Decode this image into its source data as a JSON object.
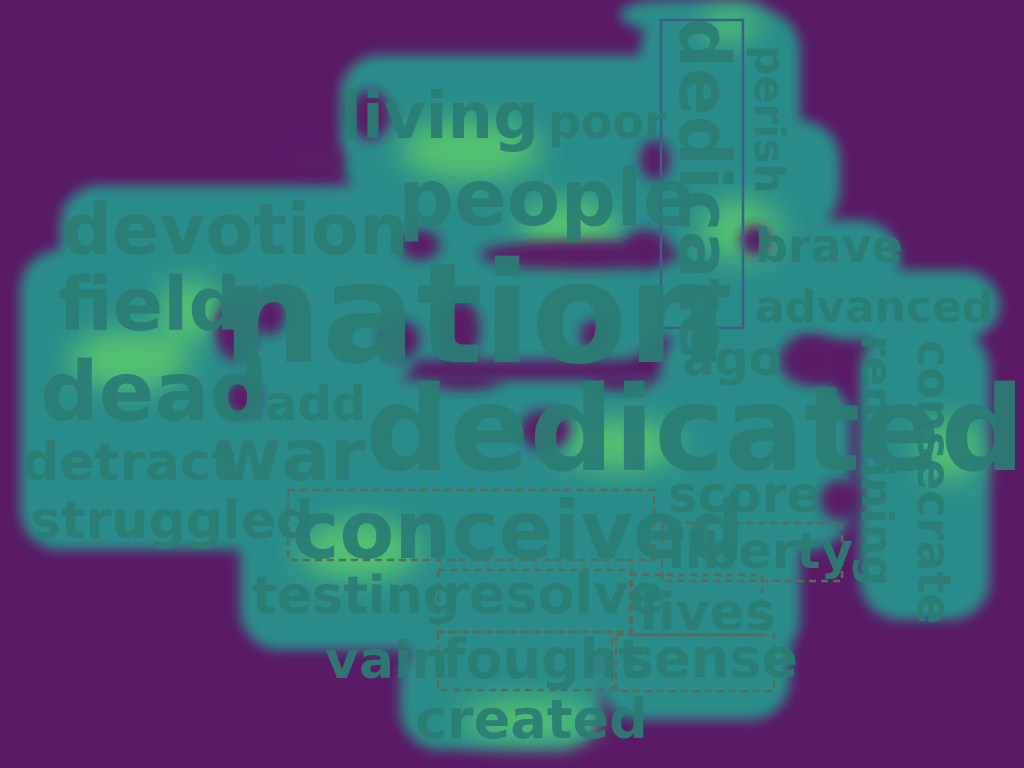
{
  "colors": {
    "background": "#5a1a66",
    "heat_low": "#2a8c8a",
    "heat_mid": "#2ea88a",
    "heat_high": "#5fd06a",
    "word": "#2a7d74",
    "box_dashed": "#5a6a5a",
    "box_solid": "#3a6088"
  },
  "words": [
    {
      "text": "dedicate",
      "key": "dedicate",
      "vertical": true,
      "highlight": "solid"
    },
    {
      "text": "perish",
      "key": "perish",
      "vertical": true,
      "highlight": "none"
    },
    {
      "text": "living",
      "key": "living",
      "vertical": false,
      "highlight": "none"
    },
    {
      "text": "poor",
      "key": "poor",
      "vertical": false,
      "highlight": "none"
    },
    {
      "text": "people",
      "key": "people",
      "vertical": false,
      "highlight": "none"
    },
    {
      "text": "devotion",
      "key": "devotion",
      "vertical": false,
      "highlight": "none"
    },
    {
      "text": "brave",
      "key": "brave",
      "vertical": false,
      "highlight": "none"
    },
    {
      "text": "field",
      "key": "field",
      "vertical": false,
      "highlight": "none"
    },
    {
      "text": "nation",
      "key": "nation",
      "vertical": false,
      "highlight": "none"
    },
    {
      "text": "advanced",
      "key": "advanced",
      "vertical": false,
      "highlight": "none"
    },
    {
      "text": "dead",
      "key": "dead",
      "vertical": false,
      "highlight": "none"
    },
    {
      "text": "add",
      "key": "add",
      "vertical": false,
      "highlight": "none"
    },
    {
      "text": "ago",
      "key": "ago",
      "vertical": false,
      "highlight": "none"
    },
    {
      "text": "remaining",
      "key": "remaining",
      "vertical": true,
      "highlight": "none"
    },
    {
      "text": "consecrate",
      "key": "consecrate",
      "vertical": true,
      "highlight": "none"
    },
    {
      "text": "dedicated",
      "key": "dedicated",
      "vertical": false,
      "highlight": "none"
    },
    {
      "text": "detract",
      "key": "detract",
      "vertical": false,
      "highlight": "none"
    },
    {
      "text": "war",
      "key": "war",
      "vertical": false,
      "highlight": "none"
    },
    {
      "text": "score",
      "key": "score",
      "vertical": false,
      "highlight": "none"
    },
    {
      "text": "struggled",
      "key": "struggled",
      "vertical": false,
      "highlight": "none"
    },
    {
      "text": "conceived",
      "key": "conceived",
      "vertical": false,
      "highlight": "dashed"
    },
    {
      "text": "liberty",
      "key": "liberty",
      "vertical": false,
      "highlight": "dashed"
    },
    {
      "text": "testing",
      "key": "testing",
      "vertical": false,
      "highlight": "none"
    },
    {
      "text": "resolve",
      "key": "resolve",
      "vertical": false,
      "highlight": "dashed"
    },
    {
      "text": "lives",
      "key": "lives",
      "vertical": false,
      "highlight": "dashed"
    },
    {
      "text": "vain",
      "key": "vain",
      "vertical": false,
      "highlight": "none"
    },
    {
      "text": "fought",
      "key": "fought",
      "vertical": false,
      "highlight": "dashed"
    },
    {
      "text": "sense",
      "key": "sense",
      "vertical": false,
      "highlight": "dashed"
    },
    {
      "text": "created",
      "key": "created",
      "vertical": false,
      "highlight": "none"
    }
  ]
}
